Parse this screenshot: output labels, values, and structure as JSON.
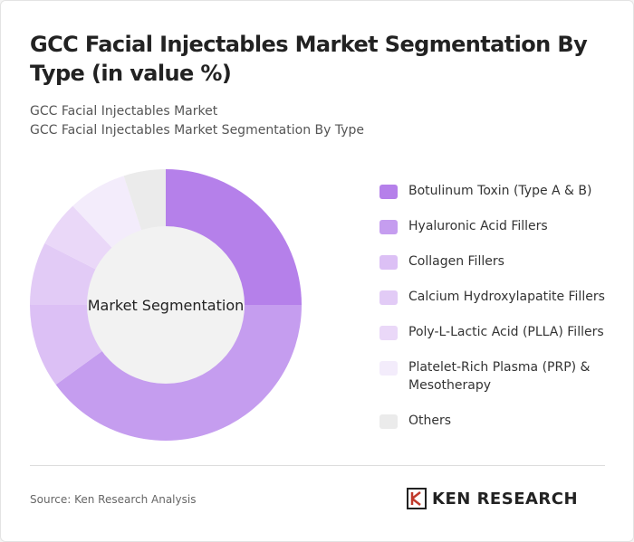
{
  "title": "GCC Facial Injectables Market Segmentation By Type (in value %)",
  "subtitle1": "GCC Facial Injectables Market",
  "subtitle2": "GCC Facial Injectables Market Segmentation By Type",
  "source": "Source: Ken Research Analysis",
  "logo_text": "KEN RESEARCH",
  "chart_data": {
    "type": "pie",
    "variant": "donut",
    "center_label": "Market Segmentation",
    "legend_position": "right",
    "categories": [
      "Botulinum Toxin (Type A & B)",
      "Hyaluronic Acid Fillers",
      "Collagen Fillers",
      "Calcium Hydroxylapatite Fillers",
      "Poly-L-Lactic Acid (PLLA) Fillers",
      "Platelet-Rich Plasma (PRP) & Mesotherapy",
      "Others"
    ],
    "values": [
      25,
      40,
      10,
      7.5,
      5.5,
      7,
      5
    ],
    "colors": [
      "#b580ea",
      "#c59def",
      "#dcc0f5",
      "#e2cbf6",
      "#ead8f8",
      "#f3ecfb",
      "#ebebeb"
    ]
  }
}
